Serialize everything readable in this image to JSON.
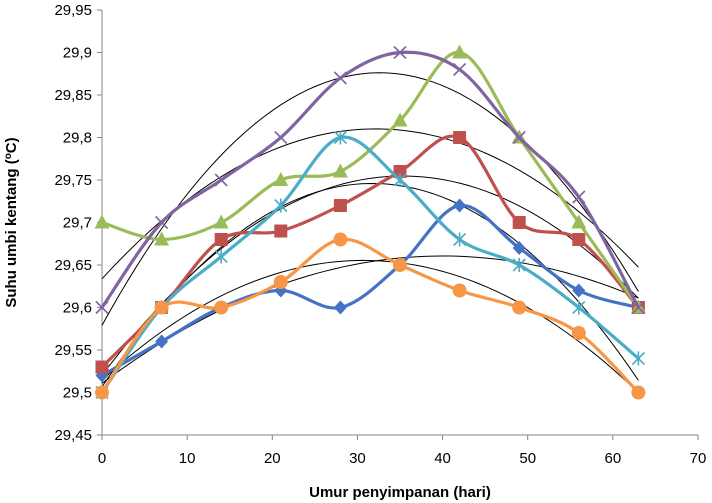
{
  "chart_data": {
    "type": "line",
    "xlabel": "Umur penyimpanan (hari)",
    "ylabel": "Suhu umbi kentang (",
    "ylabel_unit_sup": "o",
    "ylabel_unit_end": "C)",
    "xlim": [
      0,
      70
    ],
    "ylim": [
      29.45,
      29.95
    ],
    "xticks": [
      0,
      10,
      20,
      30,
      40,
      50,
      60,
      70
    ],
    "xtick_labels": [
      "0",
      "10",
      "20",
      "30",
      "40",
      "50",
      "60",
      "70"
    ],
    "yticks": [
      29.45,
      29.5,
      29.55,
      29.6,
      29.65,
      29.7,
      29.75,
      29.8,
      29.85,
      29.9,
      29.95
    ],
    "ytick_labels": [
      "29,45",
      "29,5",
      "29,55",
      "29,6",
      "29,65",
      "29,7",
      "29,75",
      "29,8",
      "29,85",
      "29,9",
      "29,95"
    ],
    "grid": false,
    "legend": "none",
    "x": [
      0,
      7,
      14,
      21,
      28,
      35,
      42,
      49,
      56,
      63
    ],
    "series": [
      {
        "marker": "diamond",
        "color": "#4472C4",
        "values": [
          29.52,
          29.56,
          29.6,
          29.62,
          29.6,
          29.65,
          29.72,
          29.67,
          29.62,
          29.6
        ]
      },
      {
        "marker": "square",
        "color": "#C0504D",
        "values": [
          29.53,
          29.6,
          29.68,
          29.69,
          29.72,
          29.76,
          29.8,
          29.7,
          29.68,
          29.6
        ]
      },
      {
        "marker": "triangle",
        "color": "#9BBB59",
        "values": [
          29.7,
          29.68,
          29.7,
          29.75,
          29.76,
          29.82,
          29.9,
          29.8,
          29.7,
          29.6
        ]
      },
      {
        "marker": "x",
        "color": "#8064A2",
        "values": [
          29.6,
          29.7,
          29.75,
          29.8,
          29.87,
          29.9,
          29.88,
          29.8,
          29.73,
          29.6
        ]
      },
      {
        "marker": "star",
        "color": "#4BACC6",
        "values": [
          29.5,
          29.6,
          29.66,
          29.72,
          29.8,
          29.75,
          29.68,
          29.65,
          29.6,
          29.54
        ]
      },
      {
        "marker": "circle",
        "color": "#F79646",
        "values": [
          29.5,
          29.6,
          29.6,
          29.63,
          29.68,
          29.65,
          29.62,
          29.6,
          29.57,
          29.5
        ]
      }
    ],
    "trendline_color": "#000000",
    "trendline_type": "polynomial-2"
  }
}
